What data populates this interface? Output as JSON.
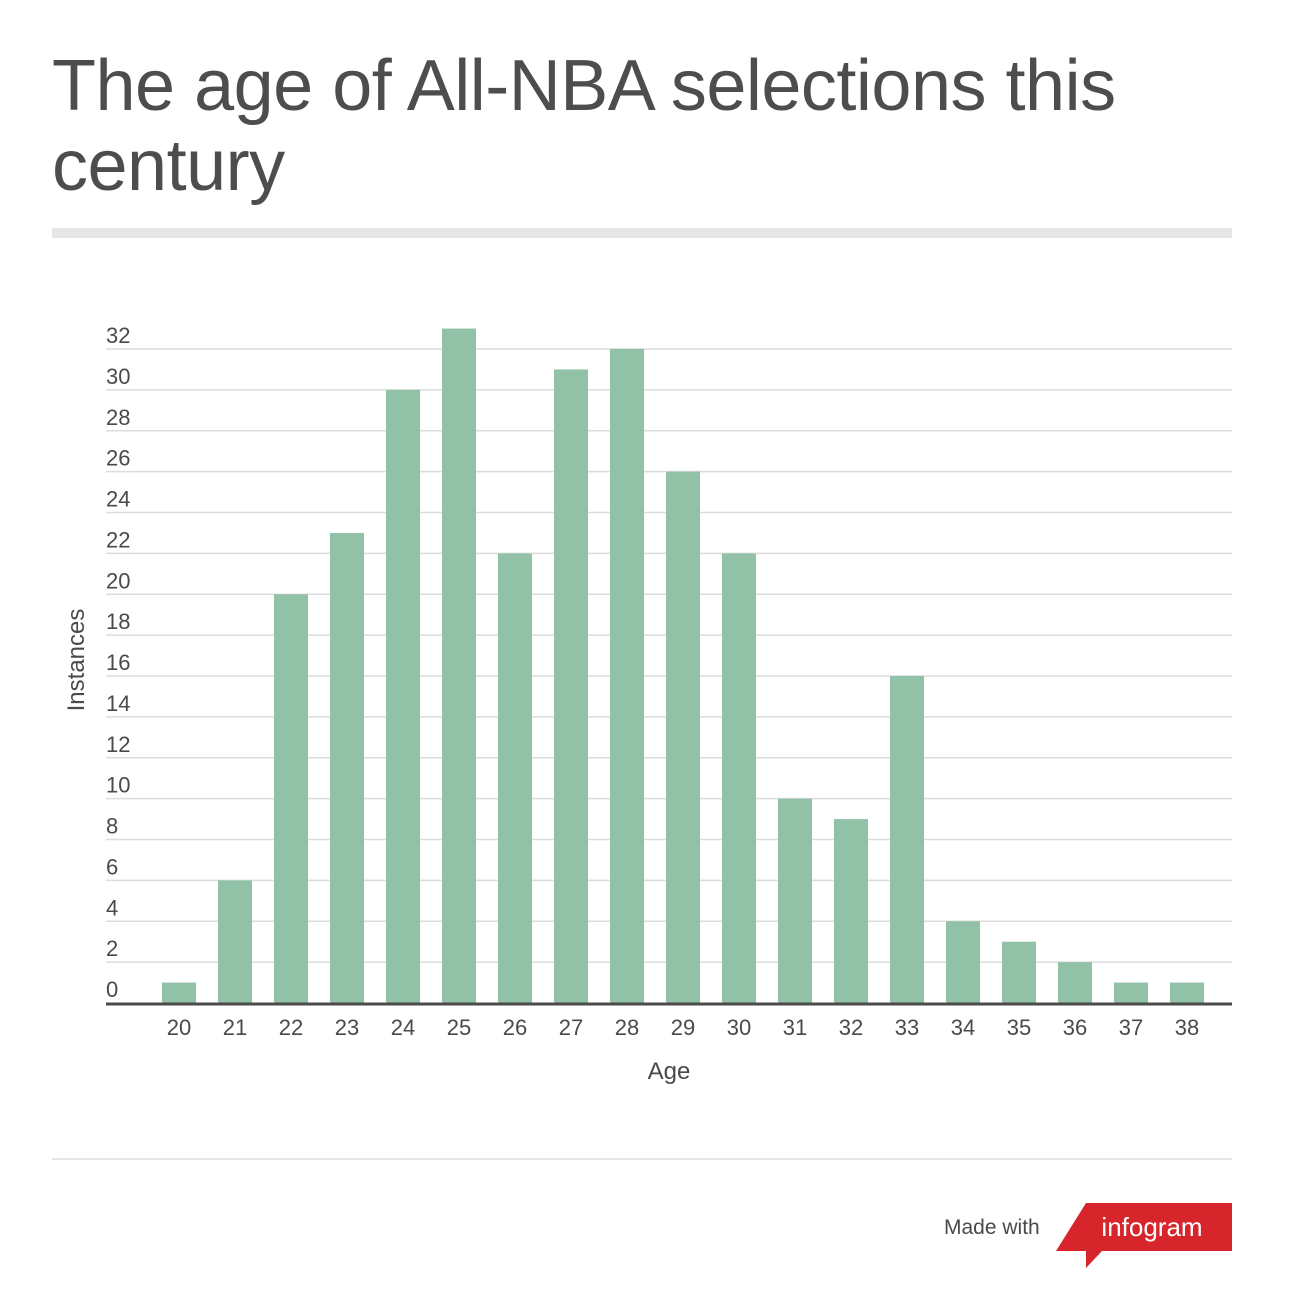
{
  "title": "The age of All-NBA selections this century",
  "footer": {
    "made_with": "Made with",
    "brand": "infogram"
  },
  "colors": {
    "bar": "#91c2a7",
    "grid": "#dcdcdc",
    "axis": "#4a4a4a",
    "brand_red": "#d7262b"
  },
  "chart_data": {
    "type": "bar",
    "categories": [
      "20",
      "21",
      "22",
      "23",
      "24",
      "25",
      "26",
      "27",
      "28",
      "29",
      "30",
      "31",
      "32",
      "33",
      "34",
      "35",
      "36",
      "37",
      "38"
    ],
    "values": [
      1,
      6,
      20,
      23,
      30,
      33,
      22,
      31,
      32,
      26,
      22,
      10,
      9,
      16,
      4,
      3,
      2,
      1,
      1
    ],
    "xlabel": "Age",
    "ylabel": "Instances",
    "ylim": [
      0,
      32
    ],
    "yticks": [
      0,
      2,
      4,
      6,
      8,
      10,
      12,
      14,
      16,
      18,
      20,
      22,
      24,
      26,
      28,
      30,
      32
    ],
    "grid": true,
    "legend": "none"
  }
}
